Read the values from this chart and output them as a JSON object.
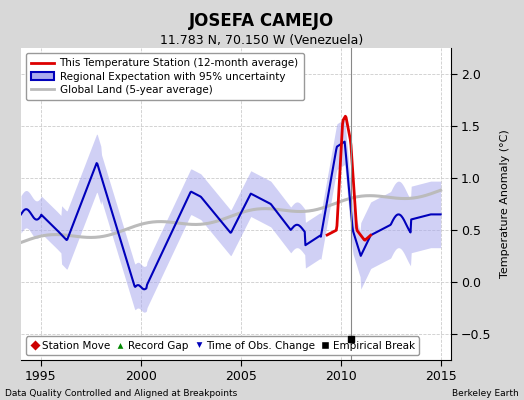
{
  "title": "JOSEFA CAMEJO",
  "subtitle": "11.783 N, 70.150 W (Venezuela)",
  "ylabel": "Temperature Anomaly (°C)",
  "xlabel_left": "Data Quality Controlled and Aligned at Breakpoints",
  "xlabel_right": "Berkeley Earth",
  "xlim": [
    1994.0,
    2015.5
  ],
  "ylim": [
    -0.75,
    2.25
  ],
  "yticks": [
    -0.5,
    0.0,
    0.5,
    1.0,
    1.5,
    2.0
  ],
  "xticks": [
    1995,
    2000,
    2005,
    2010,
    2015
  ],
  "vline_x": 2010.5,
  "empirical_break_x": 2010.5,
  "empirical_break_y": -0.55,
  "bg_color": "#d8d8d8",
  "plot_bg_color": "#ffffff",
  "blue_line_color": "#0000bb",
  "blue_fill_color": "#aaaaee",
  "red_line_color": "#dd0000",
  "gray_line_color": "#bbbbbb",
  "vline_color": "#888888"
}
